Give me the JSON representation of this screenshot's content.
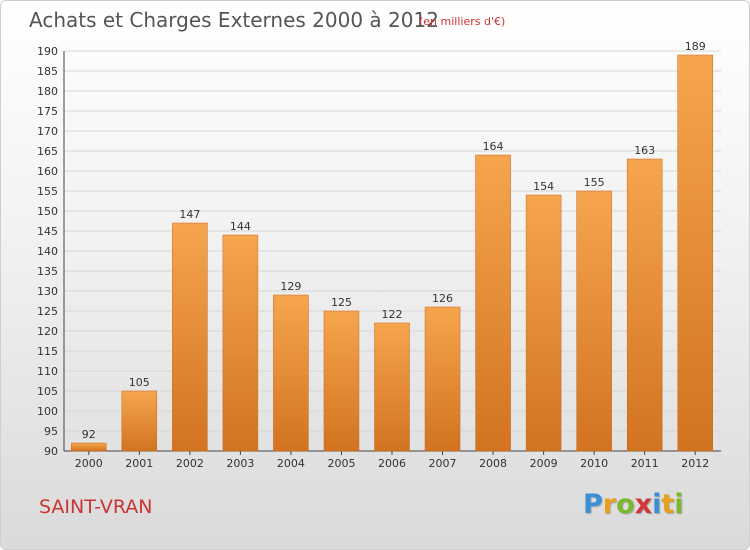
{
  "header": {
    "title": "Achats et Charges Externes 2000 à 2012",
    "unit": "(en milliers d'€)"
  },
  "footer": {
    "place": "SAINT-VRAN",
    "logo": "Proxiti"
  },
  "logo_letters": [
    {
      "ch": "P",
      "color": "#3a8fd6"
    },
    {
      "ch": "r",
      "color": "#e6a020"
    },
    {
      "ch": "o",
      "color": "#7cb82f"
    },
    {
      "ch": "x",
      "color": "#d33636"
    },
    {
      "ch": "i",
      "color": "#3a8fd6"
    },
    {
      "ch": "t",
      "color": "#e6a020"
    },
    {
      "ch": "i",
      "color": "#7cb82f"
    }
  ],
  "colors": {
    "bar_light": "#f6a54e",
    "bar_dark": "#d27320",
    "title": "#555555",
    "accent": "#cc3333"
  },
  "chart_data": {
    "type": "bar",
    "categories": [
      "2000",
      "2001",
      "2002",
      "2003",
      "2004",
      "2005",
      "2006",
      "2007",
      "2008",
      "2009",
      "2010",
      "2011",
      "2012"
    ],
    "values": [
      92,
      105,
      147,
      144,
      129,
      125,
      122,
      126,
      164,
      154,
      155,
      163,
      189
    ],
    "ylim": [
      90,
      190
    ],
    "yticks": [
      90,
      95,
      100,
      105,
      110,
      115,
      120,
      125,
      130,
      135,
      140,
      145,
      150,
      155,
      160,
      165,
      170,
      175,
      180,
      185,
      190
    ],
    "grid": true
  }
}
